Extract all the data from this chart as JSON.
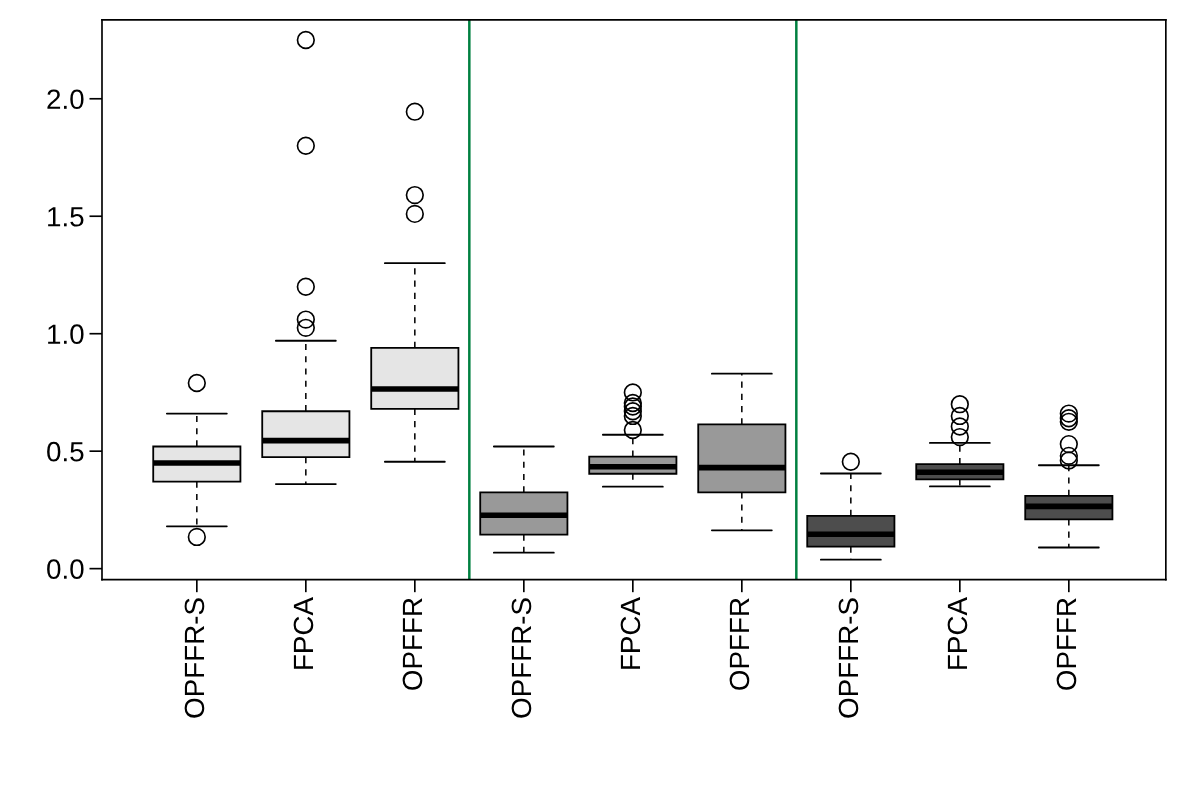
{
  "chart_data": {
    "type": "box",
    "categories": [
      "OPFFR-S",
      "FPCA",
      "OPFFR",
      "OPFFR-S",
      "FPCA",
      "OPFFR",
      "OPFFR-S",
      "FPCA",
      "OPFFR"
    ],
    "colors": [
      "#e5e5e5",
      "#e5e5e5",
      "#e5e5e5",
      "#999999",
      "#999999",
      "#999999",
      "#4d4d4d",
      "#4d4d4d",
      "#4d4d4d"
    ],
    "boxes": [
      {
        "low": 0.18,
        "q1": 0.37,
        "median": 0.45,
        "q3": 0.52,
        "high": 0.66,
        "outliers": [
          0.79,
          0.135
        ]
      },
      {
        "low": 0.36,
        "q1": 0.475,
        "median": 0.545,
        "q3": 0.67,
        "high": 0.97,
        "outliers": [
          2.25,
          1.8,
          1.2,
          1.06,
          1.025
        ]
      },
      {
        "low": 0.455,
        "q1": 0.68,
        "median": 0.765,
        "q3": 0.94,
        "high": 1.3,
        "outliers": [
          1.945,
          1.59,
          1.51
        ]
      },
      {
        "low": 0.068,
        "q1": 0.145,
        "median": 0.227,
        "q3": 0.325,
        "high": 0.52
      },
      {
        "low": 0.349,
        "q1": 0.404,
        "median": 0.434,
        "q3": 0.477,
        "high": 0.57,
        "outliers": [
          0.75,
          0.705,
          0.69,
          0.67,
          0.65,
          0.59
        ]
      },
      {
        "low": 0.163,
        "q1": 0.325,
        "median": 0.43,
        "q3": 0.614,
        "high": 0.83
      },
      {
        "low": 0.038,
        "q1": 0.094,
        "median": 0.146,
        "q3": 0.225,
        "high": 0.405,
        "outliers": [
          0.455
        ]
      },
      {
        "low": 0.35,
        "q1": 0.38,
        "median": 0.41,
        "q3": 0.445,
        "high": 0.535,
        "outliers": [
          0.7,
          0.65,
          0.605,
          0.56
        ]
      },
      {
        "low": 0.09,
        "q1": 0.21,
        "median": 0.265,
        "q3": 0.31,
        "high": 0.44,
        "outliers": [
          0.66,
          0.64,
          0.625,
          0.53,
          0.48,
          0.46
        ]
      }
    ],
    "ylim": [
      -0.047,
      2.336
    ],
    "yticks": [
      {
        "value": 0,
        "label": "0.0"
      },
      {
        "value": 0.5,
        "label": "0.5"
      },
      {
        "value": 1,
        "label": "1.0"
      },
      {
        "value": 1.5,
        "label": "1.5"
      },
      {
        "value": 2,
        "label": "2.0"
      }
    ],
    "grid": false,
    "legend": false
  }
}
